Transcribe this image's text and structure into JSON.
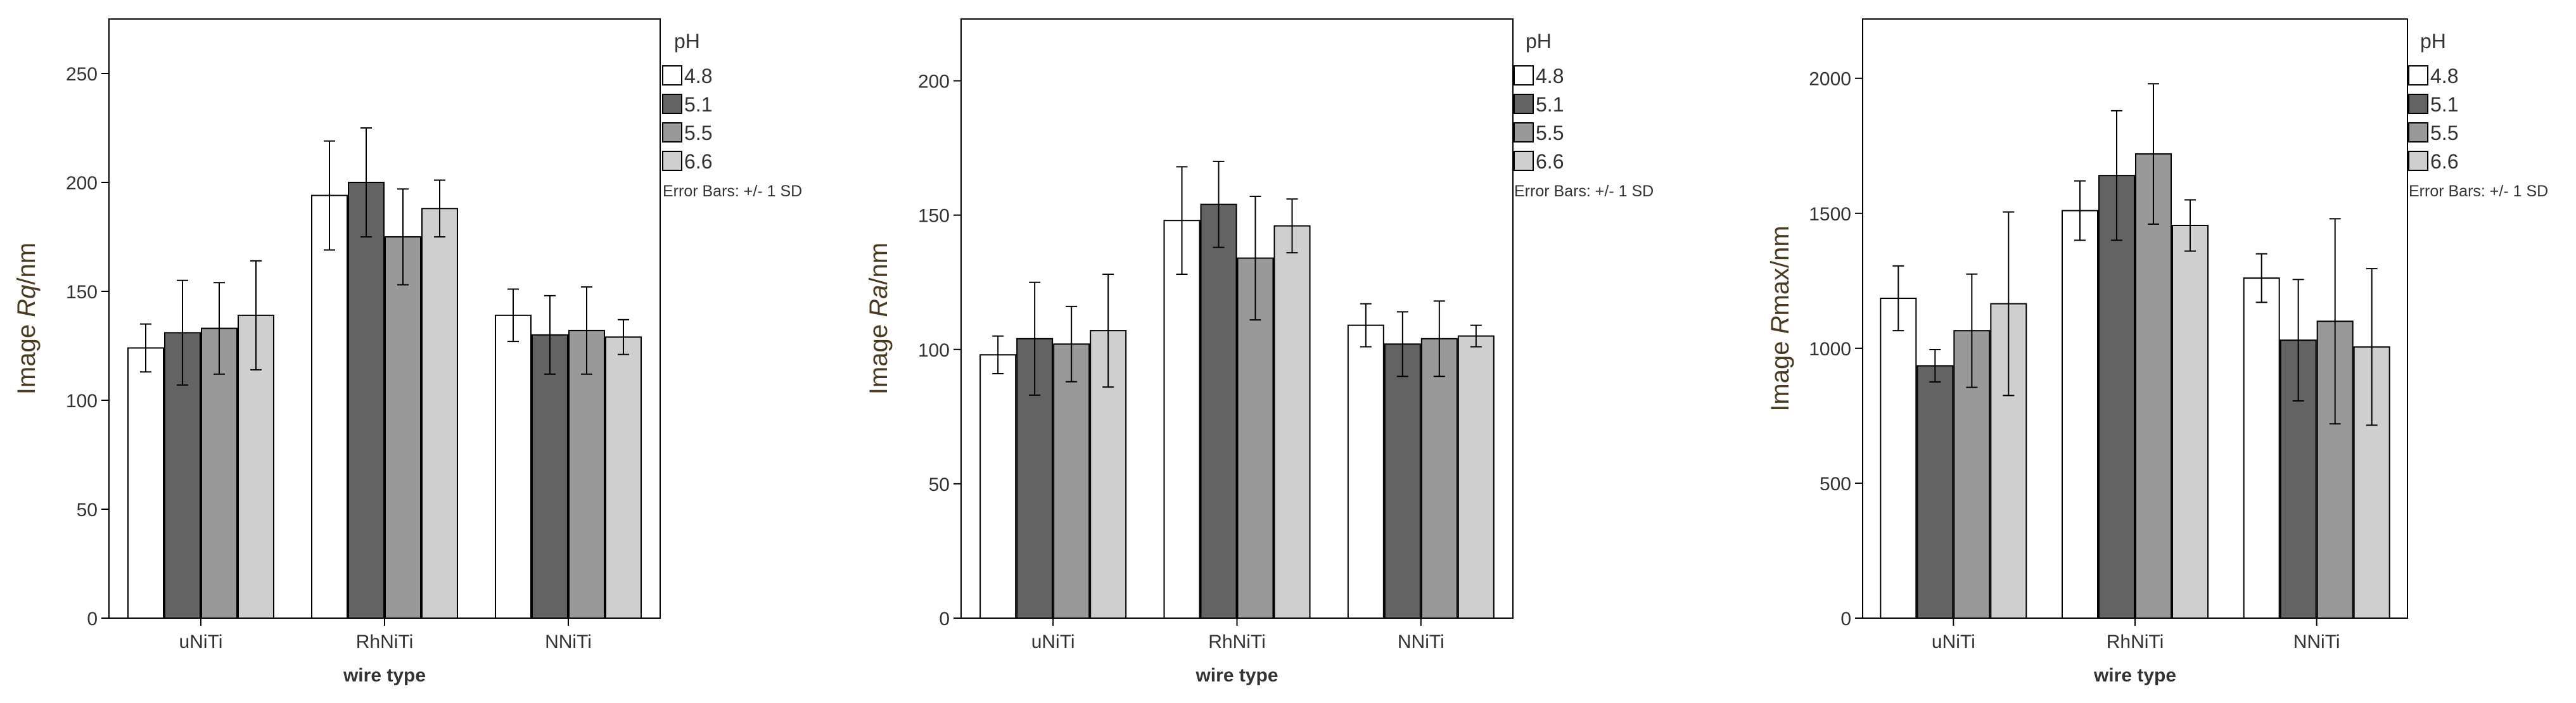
{
  "chart_data": [
    {
      "type": "bar",
      "ylabel_prefix": "Image ",
      "ylabel_var": "Rq",
      "ylabel_suffix": "/nm",
      "xlabel": "wire type",
      "categories": [
        "uNiTi",
        "RhNiTi",
        "NNiTi"
      ],
      "ylim": [
        0,
        275
      ],
      "yticks": [
        0,
        50,
        100,
        150,
        200,
        250
      ],
      "legend_title": "pH",
      "error_note": "Error Bars: +/- 1 SD",
      "series": [
        {
          "name": "4.8",
          "values": [
            124,
            194,
            139
          ],
          "errors": [
            11,
            25,
            12
          ]
        },
        {
          "name": "5.1",
          "values": [
            131,
            200,
            130
          ],
          "errors": [
            24,
            25,
            18
          ]
        },
        {
          "name": "5.5",
          "values": [
            133,
            175,
            132
          ],
          "errors": [
            21,
            22,
            20
          ]
        },
        {
          "name": "6.6",
          "values": [
            139,
            188,
            129
          ],
          "errors": [
            25,
            13,
            8
          ]
        }
      ]
    },
    {
      "type": "bar",
      "ylabel_prefix": "Image ",
      "ylabel_var": "Ra",
      "ylabel_suffix": "/nm",
      "xlabel": "wire type",
      "categories": [
        "uNiTi",
        "RhNiTi",
        "NNiTi"
      ],
      "ylim": [
        0,
        223
      ],
      "yticks": [
        0,
        50,
        100,
        150,
        200
      ],
      "legend_title": "pH",
      "error_note": "Error Bars: +/- 1 SD",
      "series": [
        {
          "name": "4.8",
          "values": [
            98,
            148,
            109
          ],
          "errors": [
            7,
            20,
            8
          ]
        },
        {
          "name": "5.1",
          "values": [
            104,
            154,
            102
          ],
          "errors": [
            21,
            16,
            12
          ]
        },
        {
          "name": "5.5",
          "values": [
            102,
            134,
            104
          ],
          "errors": [
            14,
            23,
            14
          ]
        },
        {
          "name": "6.6",
          "values": [
            107,
            146,
            105
          ],
          "errors": [
            21,
            10,
            4
          ]
        }
      ]
    },
    {
      "type": "bar",
      "ylabel_prefix": "Image ",
      "ylabel_var": "R",
      "ylabel_suffix": "max/nm",
      "xlabel": "wire type",
      "categories": [
        "uNiTi",
        "RhNiTi",
        "NNiTi"
      ],
      "ylim": [
        0,
        2220
      ],
      "yticks": [
        0,
        500,
        1000,
        1500,
        2000
      ],
      "legend_title": "pH",
      "error_note": "Error Bars: +/- 1 SD",
      "series": [
        {
          "name": "4.8",
          "values": [
            1185,
            1510,
            1260
          ],
          "errors": [
            120,
            110,
            90
          ]
        },
        {
          "name": "5.1",
          "values": [
            935,
            1640,
            1030
          ],
          "errors": [
            60,
            240,
            225
          ]
        },
        {
          "name": "5.5",
          "values": [
            1065,
            1720,
            1100
          ],
          "errors": [
            210,
            260,
            380
          ]
        },
        {
          "name": "6.6",
          "values": [
            1165,
            1455,
            1005
          ],
          "errors": [
            340,
            95,
            290
          ]
        }
      ]
    }
  ],
  "colors": {
    "series": [
      "#ffffff",
      "#636363",
      "#999999",
      "#cfcfcf"
    ],
    "frame": "#000000",
    "axis_title": "#4a3a20"
  }
}
